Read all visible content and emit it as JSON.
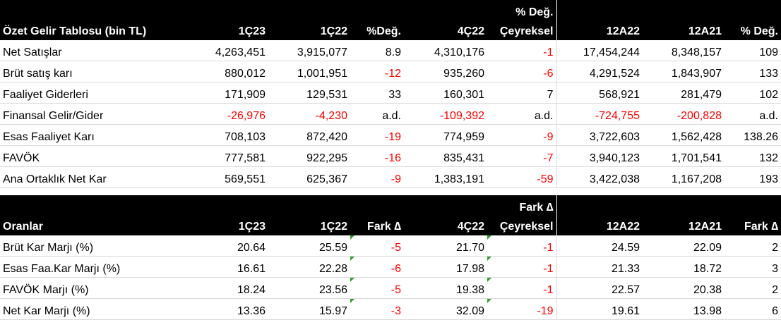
{
  "income": {
    "header_top": {
      "q_change": "% Değ.",
      "quarterly": "Çeyreksel"
    },
    "headers": [
      "Özet Gelir Tablosu (bin TL)",
      "1Ç23",
      "1Ç22",
      "%Değ.",
      "4Ç22",
      "",
      "12A22",
      "12A21",
      "% Değ."
    ],
    "rows": [
      [
        "Net Satışlar",
        "4,263,451",
        "3,915,077",
        "8.9",
        "4,310,176",
        "-1",
        "17,454,244",
        "8,348,157",
        "109"
      ],
      [
        "Brüt satış karı",
        "880,012",
        "1,001,951",
        "-12",
        "935,260",
        "-6",
        "4,291,524",
        "1,843,907",
        "133"
      ],
      [
        "Faaliyet Giderleri",
        "171,909",
        "129,531",
        "33",
        "160,301",
        "7",
        "568,921",
        "281,479",
        "102"
      ],
      [
        "Finansal Gelir/Gider",
        "-26,976",
        "-4,230",
        "a.d.",
        "-109,392",
        "a.d.",
        "-724,755",
        "-200,828",
        "a.d."
      ],
      [
        "Esas Faaliyet Karı",
        "708,103",
        "872,420",
        "-19",
        "774,959",
        "-9",
        "3,722,603",
        "1,562,428",
        "138.26"
      ],
      [
        "FAVÖK",
        "777,581",
        "922,295",
        "-16",
        "835,431",
        "-7",
        "3,940,123",
        "1,701,541",
        "132"
      ],
      [
        "Ana Ortaklık Net Kar",
        "569,551",
        "625,367",
        "-9",
        "1,383,191",
        "-59",
        "3,422,038",
        "1,167,208",
        "193"
      ]
    ]
  },
  "ratios": {
    "header_top": {
      "q_change": "Fark ∆",
      "quarterly": "Çeyreksel"
    },
    "headers": [
      "Oranlar",
      "1Ç23",
      "1Ç22",
      "Fark ∆",
      "4Ç22",
      "",
      "12A22",
      "12A21",
      "Fark ∆"
    ],
    "rows": [
      [
        "Brüt Kar Marjı (%)",
        "20.64",
        "25.59",
        "-5",
        "21.70",
        "-1",
        "24.59",
        "22.09",
        "2"
      ],
      [
        "Esas Faa.Kar Marjı (%)",
        "16.61",
        "22.28",
        "-6",
        "17.98",
        "-1",
        "21.33",
        "18.72",
        "3"
      ],
      [
        "FAVÖK Marjı (%)",
        "18.24",
        "23.56",
        "-5",
        "19.38",
        "-1",
        "22.57",
        "20.38",
        "2"
      ],
      [
        "Net Kar Marjı (%)",
        "13.36",
        "15.97",
        "-3",
        "32.09",
        "-19",
        "19.61",
        "13.98",
        "6"
      ]
    ]
  },
  "colors": {
    "negative": "#ff0000",
    "header_bg": "#000000",
    "header_text": "#ffffff",
    "comment_marker": "#2e9e2e"
  }
}
